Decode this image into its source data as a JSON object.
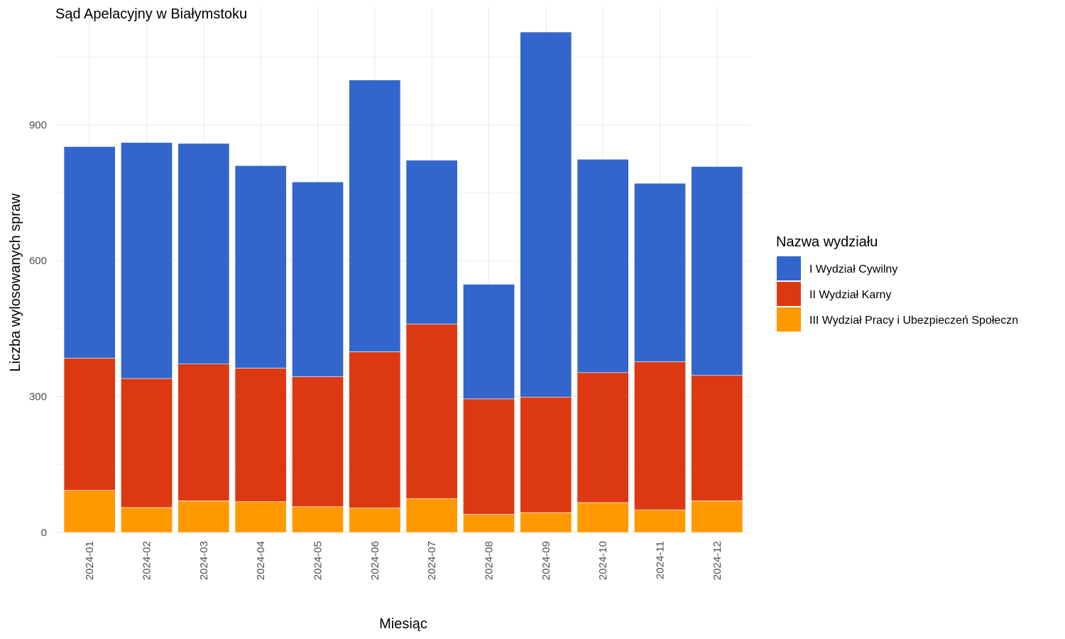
{
  "chart_data": {
    "type": "bar",
    "stacked": true,
    "title": "Sąd Apelacyjny w Białymstoku",
    "xlabel": "Miesiąc",
    "ylabel": "Liczba wylosowanych spraw",
    "ylim": [
      0,
      1160
    ],
    "yticks": [
      0,
      300,
      600,
      900
    ],
    "grid": true,
    "legend_position": "right",
    "legend_title": "Nazwa wydziału",
    "categories": [
      "2024-01",
      "2024-02",
      "2024-03",
      "2024-04",
      "2024-05",
      "2024-06",
      "2024-07",
      "2024-08",
      "2024-09",
      "2024-10",
      "2024-11",
      "2024-12"
    ],
    "series": [
      {
        "name": "III Wydział Pracy i Ubezpieczeń Społeczn",
        "color": "#FF9900",
        "values": [
          93,
          55,
          70,
          68,
          57,
          54,
          75,
          40,
          44,
          66,
          50,
          70
        ]
      },
      {
        "name": "II Wydział Karny",
        "color": "#DC3912",
        "values": [
          292,
          285,
          302,
          295,
          287,
          345,
          385,
          255,
          255,
          287,
          327,
          277
        ]
      },
      {
        "name": "I Wydział Cywilny",
        "color": "#3366CC",
        "values": [
          467,
          521,
          487,
          447,
          430,
          600,
          362,
          253,
          806,
          471,
          394,
          461
        ]
      }
    ]
  }
}
